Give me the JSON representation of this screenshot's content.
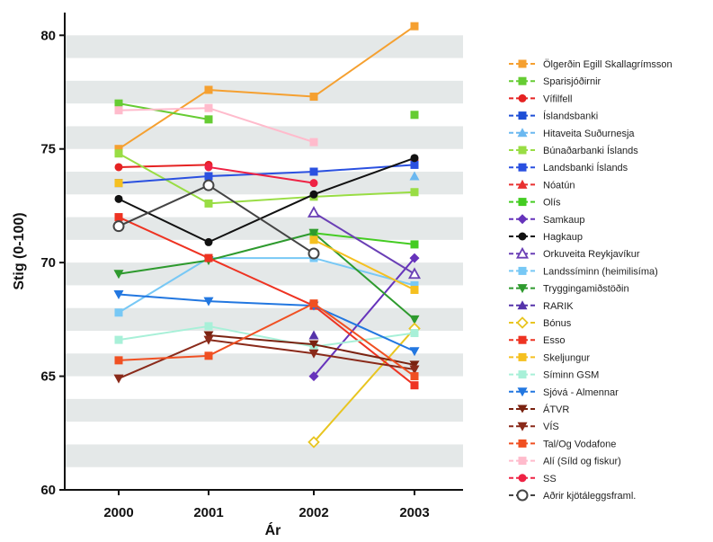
{
  "chart_data": {
    "type": "line",
    "title": "",
    "xlabel": "Ár",
    "ylabel": "Stig (0-100)",
    "x": [
      "2000",
      "2001",
      "2002",
      "2003"
    ],
    "ylim": [
      60,
      81
    ],
    "yticks": [
      60,
      65,
      70,
      75,
      80
    ],
    "grid": "alternating horizontal bands",
    "legend_position": "right",
    "series": [
      {
        "name": "Ölgerðin Egill Skallagrímsson",
        "color": "#f5a030",
        "marker": "square",
        "values": [
          75.0,
          77.6,
          77.3,
          80.4
        ]
      },
      {
        "name": "Sparisjóðirnir",
        "color": "#66cc33",
        "marker": "square",
        "values": [
          77.0,
          76.3,
          null,
          76.5
        ]
      },
      {
        "name": "Vífilfell",
        "color": "#e52222",
        "marker": "circle",
        "values": [
          74.2,
          74.3,
          null,
          74.5
        ]
      },
      {
        "name": "Íslandsbanki",
        "color": "#1f4fd6",
        "marker": "square",
        "values": [
          null,
          null,
          null,
          null
        ]
      },
      {
        "name": "Hitaveita Suðurnesja",
        "color": "#6bb8f0",
        "marker": "triangle",
        "values": [
          null,
          null,
          null,
          73.8
        ]
      },
      {
        "name": "Búnaðarbanki Íslands",
        "color": "#99dd44",
        "marker": "square",
        "values": [
          74.8,
          72.6,
          72.9,
          73.1
        ]
      },
      {
        "name": "Landsbanki Íslands",
        "color": "#2a50e0",
        "marker": "square",
        "values": [
          73.5,
          73.8,
          74.0,
          74.3
        ]
      },
      {
        "name": "Nóatún",
        "color": "#e83030",
        "marker": "triangle",
        "values": [
          null,
          null,
          null,
          null
        ]
      },
      {
        "name": "Olís",
        "color": "#44cc22",
        "marker": "square",
        "values": [
          null,
          null,
          71.3,
          70.8
        ]
      },
      {
        "name": "Samkaup",
        "color": "#6633bb",
        "marker": "diamond",
        "values": [
          null,
          null,
          65.0,
          70.2
        ]
      },
      {
        "name": "Hagkaup",
        "color": "#111111",
        "marker": "circle",
        "values": [
          72.8,
          70.9,
          73.0,
          74.6
        ]
      },
      {
        "name": "Orkuveita Reykjavíkur",
        "color": "#6a3fb5",
        "marker": "triangle-open",
        "values": [
          null,
          null,
          72.2,
          69.5
        ]
      },
      {
        "name": "Landssíminn (heimilisíma)",
        "color": "#77c8f5",
        "marker": "square",
        "values": [
          67.8,
          70.2,
          70.2,
          69.0
        ]
      },
      {
        "name": "Tryggingamiðstöðin",
        "color": "#2e9a2e",
        "marker": "triangle-down",
        "values": [
          69.5,
          70.1,
          71.3,
          67.5
        ]
      },
      {
        "name": "RARIK",
        "color": "#5533aa",
        "marker": "triangle",
        "values": [
          null,
          null,
          66.8,
          null
        ]
      },
      {
        "name": "Bónus",
        "color": "#e8c520",
        "marker": "diamond-open",
        "values": [
          null,
          null,
          62.1,
          67.1
        ]
      },
      {
        "name": "Esso",
        "color": "#ee3322",
        "marker": "square",
        "values": [
          72.0,
          70.2,
          68.1,
          64.6
        ]
      },
      {
        "name": "Skeljungur",
        "color": "#f5c020",
        "marker": "square",
        "values": [
          73.5,
          null,
          71.0,
          68.8
        ]
      },
      {
        "name": "Síminn GSM",
        "color": "#a8f0d8",
        "marker": "square",
        "values": [
          66.6,
          67.2,
          66.3,
          66.9
        ]
      },
      {
        "name": "Sjóvá - Almennar",
        "color": "#2277e0",
        "marker": "triangle-down",
        "values": [
          68.6,
          68.3,
          68.1,
          66.1
        ]
      },
      {
        "name": "ÁTVR",
        "color": "#7a2210",
        "marker": "bowtie",
        "values": [
          null,
          66.8,
          66.4,
          65.5
        ]
      },
      {
        "name": "VÍS",
        "color": "#8a2a1a",
        "marker": "triangle-down",
        "values": [
          64.9,
          66.6,
          66.0,
          65.3
        ]
      },
      {
        "name": "Tal/Og Vodafone",
        "color": "#f05022",
        "marker": "square",
        "values": [
          65.7,
          65.9,
          68.2,
          65.0
        ]
      },
      {
        "name": "Alí (Síld og fiskur)",
        "color": "#ffbbcc",
        "marker": "square",
        "values": [
          76.7,
          76.8,
          75.3,
          null
        ]
      },
      {
        "name": "SS",
        "color": "#ee2244",
        "marker": "circle",
        "values": [
          null,
          74.2,
          73.5,
          null
        ]
      },
      {
        "name": "Aðrir kjötáleggsframl.",
        "color": "#444444",
        "marker": "circle-open",
        "values": [
          71.6,
          73.4,
          70.4,
          null
        ]
      }
    ]
  }
}
